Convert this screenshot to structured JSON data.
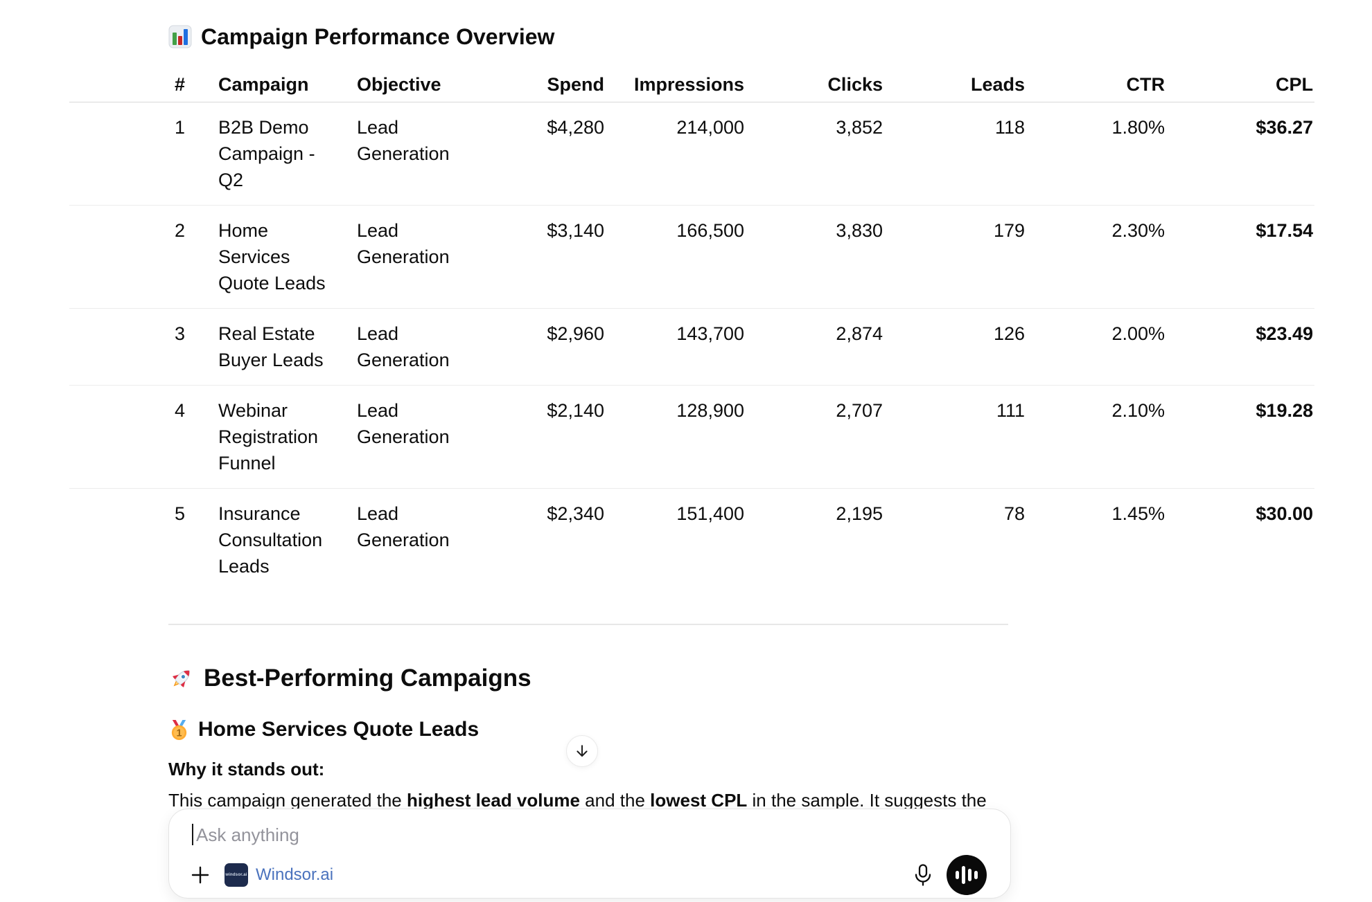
{
  "header": {
    "title_emoji": "bar-chart-emoji",
    "title": "Campaign Performance Overview"
  },
  "table": {
    "columns": [
      {
        "label": "#",
        "key": "num",
        "align": "left"
      },
      {
        "label": "Campaign",
        "key": "campaign",
        "align": "left"
      },
      {
        "label": "Objective",
        "key": "objective",
        "align": "left"
      },
      {
        "label": "Spend",
        "key": "spend",
        "align": "right"
      },
      {
        "label": "Impressions",
        "key": "impressions",
        "align": "right"
      },
      {
        "label": "Clicks",
        "key": "clicks",
        "align": "right"
      },
      {
        "label": "Leads",
        "key": "leads",
        "align": "right"
      },
      {
        "label": "CTR",
        "key": "ctr",
        "align": "right"
      },
      {
        "label": "CPL",
        "key": "cpl",
        "align": "right"
      }
    ],
    "rows": [
      [
        "1",
        "B2B Demo Campaign - Q2",
        "Lead Generation",
        "$4,280",
        "214,000",
        "3,852",
        "118",
        "1.80%",
        "$36.27"
      ],
      [
        "2",
        "Home Services Quote Leads",
        "Lead Generation",
        "$3,140",
        "166,500",
        "3,830",
        "179",
        "2.30%",
        "$17.54"
      ],
      [
        "3",
        "Real Estate Buyer Leads",
        "Lead Generation",
        "$2,960",
        "143,700",
        "2,874",
        "126",
        "2.00%",
        "$23.49"
      ],
      [
        "4",
        "Webinar Registration Funnel",
        "Lead Generation",
        "$2,140",
        "128,900",
        "2,707",
        "111",
        "2.10%",
        "$19.28"
      ],
      [
        "5",
        "Insurance Consultation Leads",
        "Lead Generation",
        "$2,340",
        "151,400",
        "2,195",
        "78",
        "1.45%",
        "$30.00"
      ]
    ]
  },
  "sections": {
    "best_emoji": "rocket-emoji",
    "best_heading": "Best-Performing Campaigns",
    "winner_emoji": "gold-medal-emoji",
    "winner_heading": "Home Services Quote Leads",
    "standout_label": "Why it stands out:",
    "standout_parts": [
      {
        "text": "This campaign generated the ",
        "bold": false
      },
      {
        "text": "highest lead volume",
        "bold": true
      },
      {
        "text": " and the ",
        "bold": false
      },
      {
        "text": "lowest CPL",
        "bold": true
      },
      {
        "text": " in the sample. It suggests the",
        "bold": false
      }
    ]
  },
  "scroll_button": {
    "icon": "arrow-down-icon"
  },
  "composer": {
    "placeholder": "Ask anything",
    "plus_icon": "plus-icon",
    "brand": {
      "logo_text": "windsor.ai",
      "name": "Windsor.ai",
      "link_color": "#4a72bd",
      "logo_bg": "#1d2b4d",
      "logo_fg": "#cfd8e6"
    },
    "mic_icon": "microphone-icon",
    "voice_icon": "voice-waveform-icon"
  }
}
